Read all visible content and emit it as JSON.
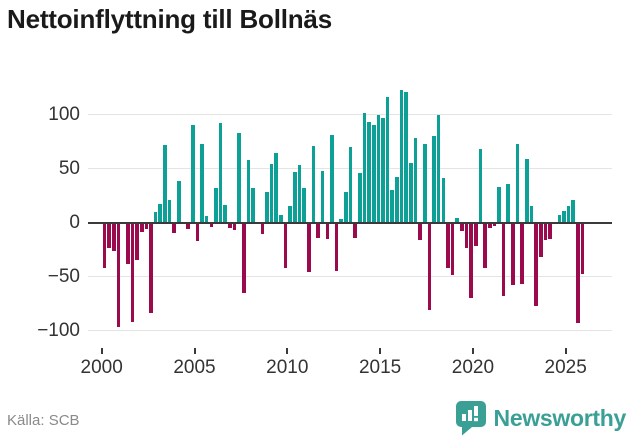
{
  "header": {
    "title": "Nettoinflyttning till Bollnäs"
  },
  "footer": {
    "source_label": "Källa: SCB",
    "brand": {
      "name": "Newsworthy",
      "icon": "newsworthy-badge-bar-chart-icon",
      "color": "#3AA096"
    }
  },
  "chart_data": {
    "type": "bar",
    "title": "Nettoinflyttning till Bollnäs",
    "frequency": "quarterly",
    "start_period": "2000-Q1",
    "end_period": "2025-Q4",
    "values": [
      -42,
      -24,
      -26,
      -97,
      0,
      -38,
      -92,
      -35,
      -9,
      -6,
      -84,
      10,
      17,
      72,
      21,
      -10,
      38,
      0,
      -6,
      90,
      -17,
      73,
      6,
      -4,
      32,
      92,
      16,
      -5,
      -7,
      83,
      -65,
      58,
      32,
      0,
      -11,
      28,
      54,
      64,
      7,
      -42,
      15,
      47,
      53,
      32,
      -46,
      71,
      -14,
      48,
      -15,
      81,
      -45,
      3,
      28,
      70,
      -14,
      46,
      101,
      93,
      90,
      100,
      97,
      116,
      30,
      42,
      123,
      121,
      55,
      78,
      -16,
      73,
      -81,
      80,
      100,
      41,
      -42,
      -49,
      4,
      -8,
      -24,
      -70,
      -22,
      68,
      -42,
      -5,
      -3,
      33,
      -68,
      36,
      -58,
      73,
      -57,
      59,
      15,
      -77,
      -32,
      -16,
      -15,
      0,
      7,
      11,
      15,
      21,
      -93,
      -48
    ],
    "y_ticks": [
      {
        "value": 100,
        "label": "100"
      },
      {
        "value": 50,
        "label": "50"
      },
      {
        "value": 0,
        "label": "0"
      },
      {
        "value": -50,
        "label": "−50"
      },
      {
        "value": -100,
        "label": "−100"
      }
    ],
    "x_ticks": [
      {
        "label": "2000"
      },
      {
        "label": "2005"
      },
      {
        "label": "2010"
      },
      {
        "label": "2015"
      },
      {
        "label": "2020"
      },
      {
        "label": "2025"
      }
    ],
    "ylim": [
      -113,
      137
    ],
    "grid": true,
    "legend": false,
    "positive_color": "#0DA096",
    "negative_color": "#9B0A4D"
  }
}
